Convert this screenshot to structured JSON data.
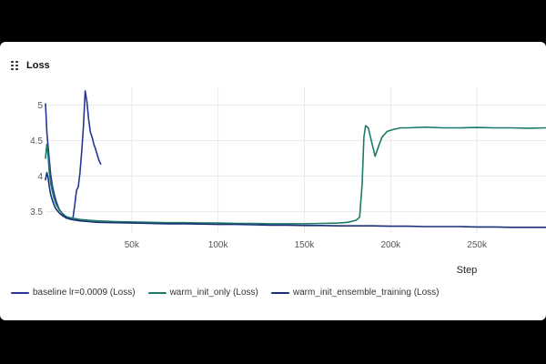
{
  "panel": {
    "title": "Loss",
    "drag_icon": "drag-handle-icon"
  },
  "colors": {
    "baseline": "#283593",
    "warm_init_only": "#1b7a68",
    "warm_init_ensemble_training": "#1a2f78",
    "grid": "#e9e9ee",
    "tick_text": "#555555"
  },
  "chart_data": {
    "type": "line",
    "title": "Loss",
    "xlabel": "Step",
    "ylabel": "",
    "xlim": [
      0,
      290000
    ],
    "ylim": [
      3.2,
      5.25
    ],
    "x_ticks": [
      50000,
      100000,
      150000,
      200000,
      250000
    ],
    "x_tick_labels": [
      "50k",
      "100k",
      "150k",
      "200k",
      "250k"
    ],
    "y_ticks": [
      3.5,
      4,
      4.5,
      5
    ],
    "y_tick_labels": [
      "3.5",
      "4",
      "4.5",
      "5"
    ],
    "grid": true,
    "legend_position": "bottom",
    "series": [
      {
        "name": "baseline lr=0.0009 (Loss)",
        "key": "baseline",
        "x": [
          0,
          800,
          2000,
          3000,
          4000,
          5000,
          6000,
          7000,
          8000,
          9000,
          10000,
          11000,
          12000,
          13000,
          14000,
          15000,
          16000,
          17000,
          18000,
          19000,
          20000,
          21000,
          22000,
          23000,
          24000,
          25000,
          26000,
          27000,
          28000,
          29000,
          30000,
          31000,
          32000
        ],
        "y": [
          5.02,
          4.62,
          4.28,
          4.02,
          3.86,
          3.75,
          3.66,
          3.59,
          3.53,
          3.5,
          3.46,
          3.44,
          3.42,
          3.41,
          3.4,
          3.39,
          3.42,
          3.6,
          3.8,
          3.85,
          4.05,
          4.35,
          4.7,
          5.2,
          5.05,
          4.8,
          4.62,
          4.55,
          4.45,
          4.38,
          4.3,
          4.22,
          4.17
        ]
      },
      {
        "name": "warm_init_only (Loss)",
        "key": "warm_init_only",
        "x": [
          0,
          800,
          1500,
          2200,
          3000,
          4000,
          5000,
          6000,
          8000,
          10000,
          12000,
          15000,
          20000,
          25000,
          30000,
          40000,
          50000,
          60000,
          70000,
          80000,
          90000,
          100000,
          110000,
          120000,
          130000,
          140000,
          150000,
          160000,
          170000,
          175000,
          180000,
          182000,
          183500,
          184500,
          185500,
          187000,
          189000,
          191000,
          193000,
          195000,
          198000,
          202000,
          206000,
          210000,
          220000,
          230000,
          240000,
          250000,
          260000,
          270000,
          280000,
          290000
        ],
        "y": [
          4.25,
          4.45,
          4.3,
          4.05,
          3.9,
          3.78,
          3.68,
          3.61,
          3.52,
          3.47,
          3.43,
          3.41,
          3.39,
          3.38,
          3.37,
          3.36,
          3.355,
          3.35,
          3.345,
          3.345,
          3.34,
          3.34,
          3.335,
          3.335,
          3.33,
          3.33,
          3.33,
          3.335,
          3.34,
          3.35,
          3.38,
          3.42,
          3.9,
          4.55,
          4.71,
          4.68,
          4.48,
          4.28,
          4.42,
          4.55,
          4.63,
          4.66,
          4.68,
          4.68,
          4.69,
          4.68,
          4.68,
          4.685,
          4.68,
          4.68,
          4.675,
          4.68
        ]
      },
      {
        "name": "warm_init_ensemble_training (Loss)",
        "key": "warm_init_ensemble_training",
        "x": [
          0,
          800,
          1500,
          2200,
          3000,
          4000,
          5000,
          6000,
          8000,
          10000,
          12000,
          15000,
          20000,
          25000,
          30000,
          40000,
          50000,
          60000,
          70000,
          80000,
          90000,
          100000,
          110000,
          120000,
          130000,
          140000,
          150000,
          160000,
          170000,
          180000,
          190000,
          200000,
          210000,
          220000,
          230000,
          240000,
          250000,
          260000,
          270000,
          280000,
          290000
        ],
        "y": [
          3.95,
          4.05,
          3.98,
          3.85,
          3.74,
          3.66,
          3.59,
          3.54,
          3.48,
          3.44,
          3.41,
          3.39,
          3.37,
          3.36,
          3.35,
          3.345,
          3.34,
          3.335,
          3.33,
          3.33,
          3.325,
          3.32,
          3.32,
          3.315,
          3.31,
          3.31,
          3.305,
          3.305,
          3.3,
          3.3,
          3.3,
          3.295,
          3.295,
          3.29,
          3.29,
          3.29,
          3.285,
          3.285,
          3.28,
          3.28,
          3.28
        ]
      }
    ]
  }
}
